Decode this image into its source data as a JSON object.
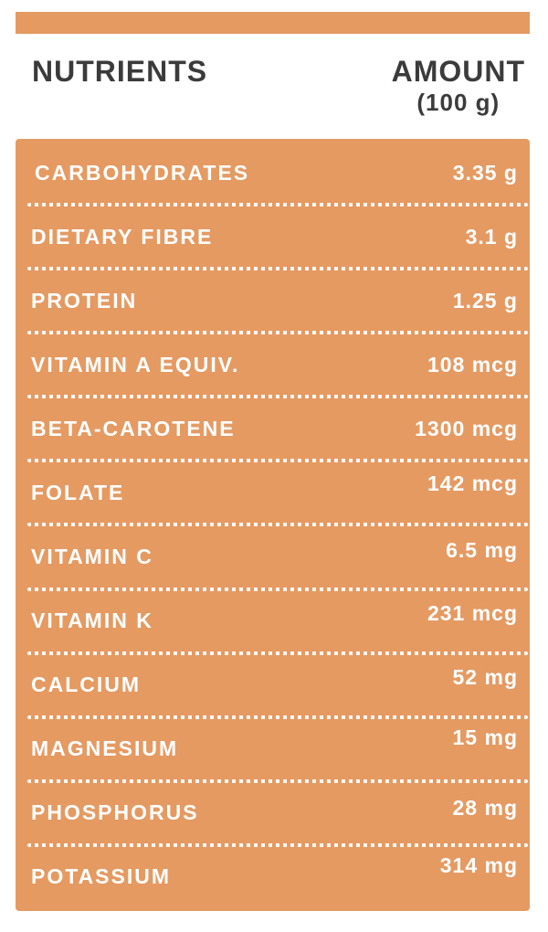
{
  "header": {
    "nutrients_label": "NUTRIENTS",
    "amount_label": "AMOUNT",
    "amount_sublabel": "(100 g)"
  },
  "table": {
    "rows": [
      {
        "label": "CARBOHYDRATES",
        "value": "3.35 g"
      },
      {
        "label": "DIETARY FIBRE",
        "value": "3.1 g"
      },
      {
        "label": "PROTEIN",
        "value": "1.25 g"
      },
      {
        "label": "VITAMIN A EQUIV.",
        "value": "108 mcg"
      },
      {
        "label": "BETA-CAROTENE",
        "value": "1300 mcg"
      },
      {
        "label": "FOLATE",
        "value": "142 mcg"
      },
      {
        "label": "VITAMIN C",
        "value": "6.5 mg"
      },
      {
        "label": "VITAMIN K",
        "value": "231 mcg"
      },
      {
        "label": "CALCIUM",
        "value": "52 mg"
      },
      {
        "label": "MAGNESIUM",
        "value": "15 mg"
      },
      {
        "label": "PHOSPHORUS",
        "value": "28 mg"
      },
      {
        "label": "POTASSIUM",
        "value": "314 mg"
      }
    ]
  },
  "colors": {
    "accent_orange": "#E59A62",
    "header_text": "#3B3B3B",
    "row_text": "#FFFFFF"
  }
}
